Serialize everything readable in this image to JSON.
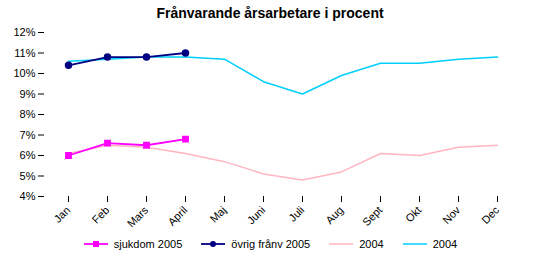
{
  "chart_data": {
    "type": "line",
    "title": "Frånvarande årsarbetare i procent",
    "categories": [
      "Jan",
      "Feb",
      "Mars",
      "April",
      "Maj",
      "Juni",
      "Juli",
      "Aug",
      "Sept",
      "Okt",
      "Nov",
      "Dec"
    ],
    "series": [
      {
        "name": "sjukdom 2005",
        "color": "#FF00FF",
        "marker": "square",
        "values": [
          6.0,
          6.6,
          6.5,
          6.8,
          null,
          null,
          null,
          null,
          null,
          null,
          null,
          null
        ]
      },
      {
        "name": "övrig frånv 2005",
        "color": "#000080",
        "marker": "circle",
        "values": [
          10.4,
          10.8,
          10.8,
          11.0,
          null,
          null,
          null,
          null,
          null,
          null,
          null,
          null
        ]
      },
      {
        "name": "2004",
        "color": "#FFB6C1",
        "values": [
          6.1,
          6.5,
          6.4,
          6.1,
          5.7,
          5.1,
          4.8,
          5.2,
          6.1,
          6.0,
          6.4,
          6.5
        ]
      },
      {
        "name": "2004",
        "color": "#00CFFF",
        "values": [
          10.6,
          10.7,
          10.8,
          10.8,
          10.7,
          9.6,
          9.0,
          9.9,
          10.5,
          10.5,
          10.7,
          10.8
        ]
      }
    ],
    "ylim": [
      4,
      12
    ],
    "yticks": [
      {
        "value": 4,
        "label": "4%"
      },
      {
        "value": 5,
        "label": "5%"
      },
      {
        "value": 6,
        "label": "6%"
      },
      {
        "value": 7,
        "label": "7%"
      },
      {
        "value": 8,
        "label": "8%"
      },
      {
        "value": 9,
        "label": "9%"
      },
      {
        "value": 10,
        "label": "10%"
      },
      {
        "value": 11,
        "label": "11%"
      },
      {
        "value": 12,
        "label": "12%"
      }
    ],
    "grid": false,
    "legend": "bottom"
  }
}
